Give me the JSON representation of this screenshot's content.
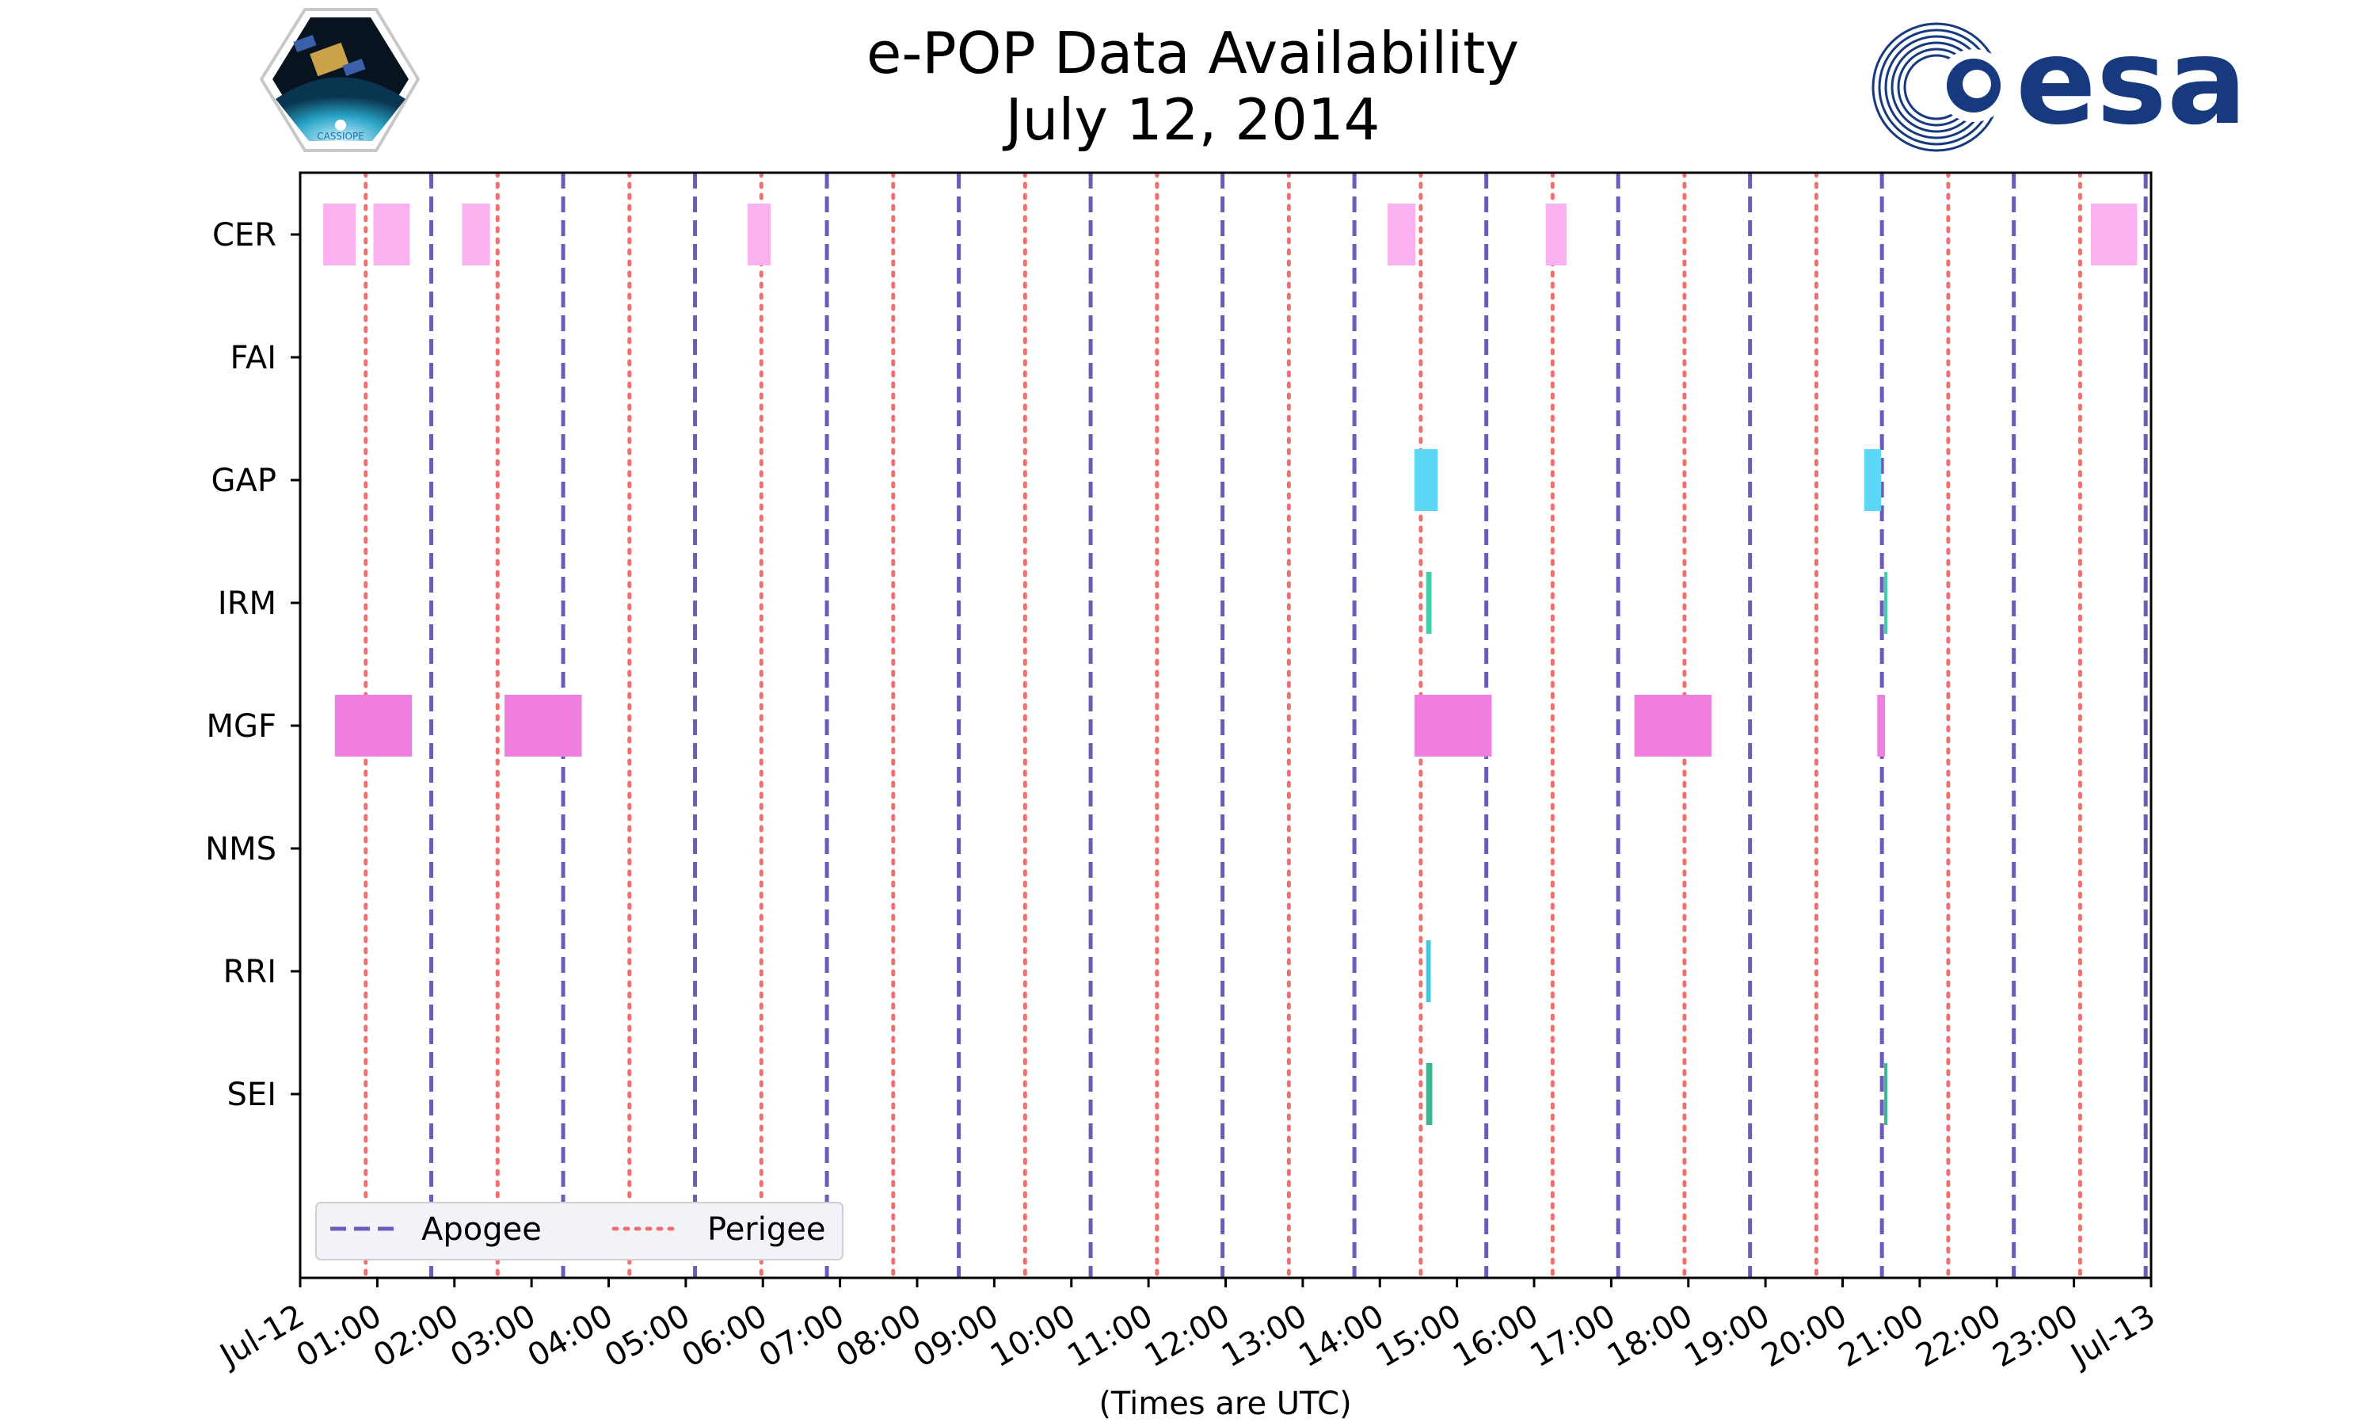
{
  "logos": {
    "left": {
      "name": "CASSIOPE",
      "label": "CASSIOPE"
    },
    "right": {
      "name": "esa",
      "label": "esa",
      "color": "#173a7e"
    }
  },
  "chart_data": {
    "type": "broken-bar timeline",
    "title": "e-POP Data Availability",
    "subtitle": "July 12, 2014",
    "xlabel": "(Times are UTC)",
    "ylabel": "",
    "xlim": [
      0,
      24
    ],
    "x_tick_values": [
      0,
      1,
      2,
      3,
      4,
      5,
      6,
      7,
      8,
      9,
      10,
      11,
      12,
      13,
      14,
      15,
      16,
      17,
      18,
      19,
      20,
      21,
      22,
      23,
      24
    ],
    "x_tick_labels": [
      "Jul-12",
      "01:00",
      "02:00",
      "03:00",
      "04:00",
      "05:00",
      "06:00",
      "07:00",
      "08:00",
      "09:00",
      "10:00",
      "11:00",
      "12:00",
      "13:00",
      "14:00",
      "15:00",
      "16:00",
      "17:00",
      "18:00",
      "19:00",
      "20:00",
      "21:00",
      "22:00",
      "23:00",
      "Jul-13"
    ],
    "instruments": [
      "CER",
      "FAI",
      "GAP",
      "IRM",
      "MGF",
      "NMS",
      "RRI",
      "SEI"
    ],
    "series": [
      {
        "name": "CER",
        "color": "#fbb0f0",
        "intervals": [
          [
            0.3,
            0.72
          ],
          [
            0.95,
            1.42
          ],
          [
            2.1,
            2.46
          ],
          [
            5.8,
            6.1
          ],
          [
            14.1,
            14.46
          ],
          [
            16.15,
            16.42
          ],
          [
            23.22,
            23.82
          ]
        ]
      },
      {
        "name": "FAI",
        "color": "#80e080",
        "intervals": []
      },
      {
        "name": "GAP",
        "color": "#5ad8f4",
        "intervals": [
          [
            14.45,
            14.75
          ],
          [
            20.28,
            20.5
          ]
        ]
      },
      {
        "name": "IRM",
        "color": "#3ed0a8",
        "intervals": [
          [
            14.6,
            14.67
          ],
          [
            20.54,
            20.58
          ]
        ]
      },
      {
        "name": "MGF",
        "color": "#f07ee0",
        "intervals": [
          [
            0.45,
            1.45
          ],
          [
            2.65,
            3.65
          ],
          [
            14.45,
            15.45
          ],
          [
            17.3,
            18.3
          ],
          [
            20.45,
            20.55
          ]
        ]
      },
      {
        "name": "NMS",
        "color": "#a0a0ff",
        "intervals": []
      },
      {
        "name": "RRI",
        "color": "#40c8e0",
        "intervals": [
          [
            14.6,
            14.66
          ]
        ]
      },
      {
        "name": "SEI",
        "color": "#38b890",
        "intervals": [
          [
            14.6,
            14.68
          ],
          [
            20.54,
            20.58
          ]
        ]
      }
    ],
    "apogee": {
      "label": "Apogee",
      "color": "#6a5cb8",
      "times": [
        1.7,
        3.41,
        5.12,
        6.83,
        8.54,
        10.25,
        11.96,
        13.67,
        15.38,
        17.09,
        18.8,
        20.51,
        22.22,
        23.93
      ]
    },
    "perigee": {
      "label": "Perigee",
      "color": "#f07070",
      "times": [
        0.85,
        2.56,
        4.27,
        5.98,
        7.69,
        9.4,
        11.11,
        12.82,
        14.53,
        16.24,
        17.95,
        19.66,
        21.37,
        23.08
      ]
    },
    "legend_position": "lower-left"
  }
}
